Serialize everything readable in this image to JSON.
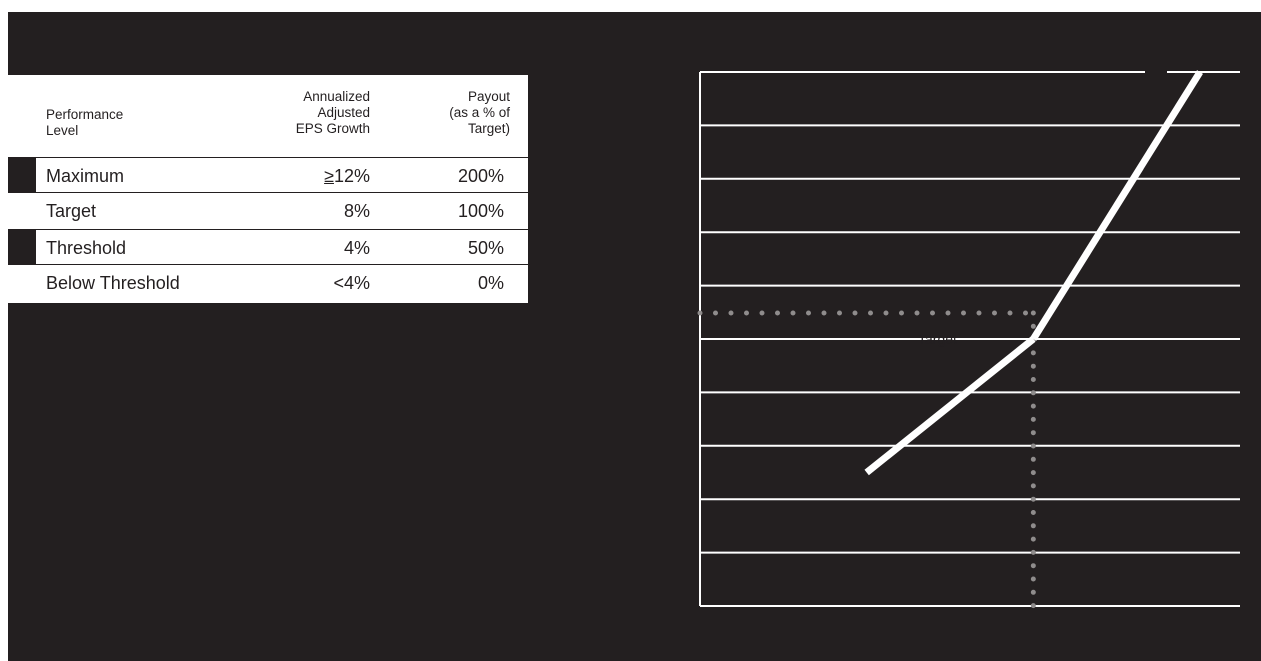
{
  "table": {
    "headers": {
      "level": "Performance\nLevel",
      "eps": "Annualized\nAdjusted\nEPS Growth",
      "payout": "Payout\n(as a % of\nTarget)"
    },
    "rows": [
      {
        "level": "Maximum",
        "eps_prefix": "≥",
        "eps": "12%",
        "payout": "200%",
        "marker": true
      },
      {
        "level": "Target",
        "eps_prefix": "",
        "eps": "8%",
        "payout": "100%",
        "marker": false
      },
      {
        "level": "Threshold",
        "eps_prefix": "",
        "eps": "4%",
        "payout": "50%",
        "marker": true
      },
      {
        "level": "Below Threshold",
        "eps_prefix": "",
        "eps": "<4%",
        "payout": "0%",
        "marker": false
      }
    ]
  },
  "chart_data": {
    "type": "line",
    "series": [
      {
        "x": [
          4,
          8,
          12
        ],
        "y": [
          50,
          100,
          200
        ]
      }
    ],
    "annotations": [
      {
        "text": "Target",
        "x": 8,
        "y": 100
      }
    ],
    "xlim": [
      0,
      12
    ],
    "ylim": [
      0,
      200
    ],
    "grid": true,
    "colors": {
      "background": "#231f20",
      "line": "#ffffff",
      "grid": "#ffffff",
      "target_guides": "#8f8c8c"
    }
  }
}
